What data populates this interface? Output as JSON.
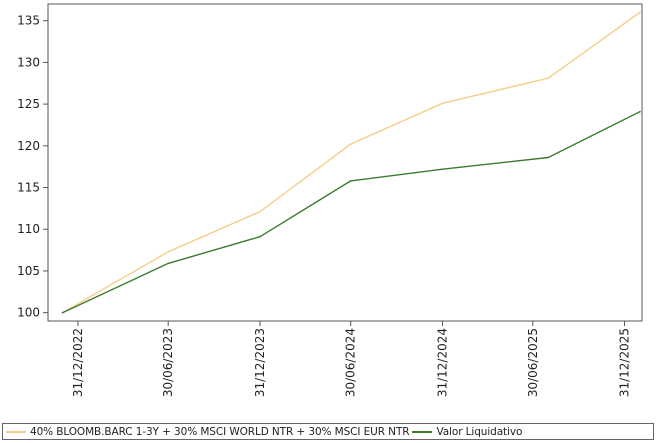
{
  "chart_data": {
    "type": "line",
    "x": [
      "31/12/2022",
      "30/06/2023",
      "31/12/2023",
      "30/06/2024",
      "31/12/2024",
      "30/06/2025",
      "31/12/2025"
    ],
    "series": [
      {
        "name": "40% BLOOMB.BARC 1-3Y + 30% MSCI WORLD NTR + 30% MSCI EUR NTR",
        "color": "#f2cf8a",
        "points": [
          {
            "date": "2022-11-30",
            "value": 100.0
          },
          {
            "date": "2023-06-30",
            "value": 107.3
          },
          {
            "date": "2023-12-31",
            "value": 112.1
          },
          {
            "date": "2024-06-30",
            "value": 120.2
          },
          {
            "date": "2024-12-31",
            "value": 125.1
          },
          {
            "date": "2025-07-31",
            "value": 128.1
          },
          {
            "date": "2026-01-31",
            "value": 136.0
          }
        ]
      },
      {
        "name": "Valor Liquidativo",
        "color": "#3d7a2e",
        "points": [
          {
            "date": "2022-11-30",
            "value": 100.0
          },
          {
            "date": "2023-06-30",
            "value": 105.9
          },
          {
            "date": "2023-12-31",
            "value": 109.1
          },
          {
            "date": "2024-06-30",
            "value": 115.8
          },
          {
            "date": "2024-12-31",
            "value": 117.2
          },
          {
            "date": "2025-07-31",
            "value": 118.6
          },
          {
            "date": "2026-01-31",
            "value": 124.1
          }
        ]
      }
    ],
    "yticks": [
      100,
      105,
      110,
      115,
      120,
      125,
      130,
      135
    ],
    "ylim": [
      99,
      137
    ],
    "grid": false,
    "legend_position": "bottom"
  }
}
